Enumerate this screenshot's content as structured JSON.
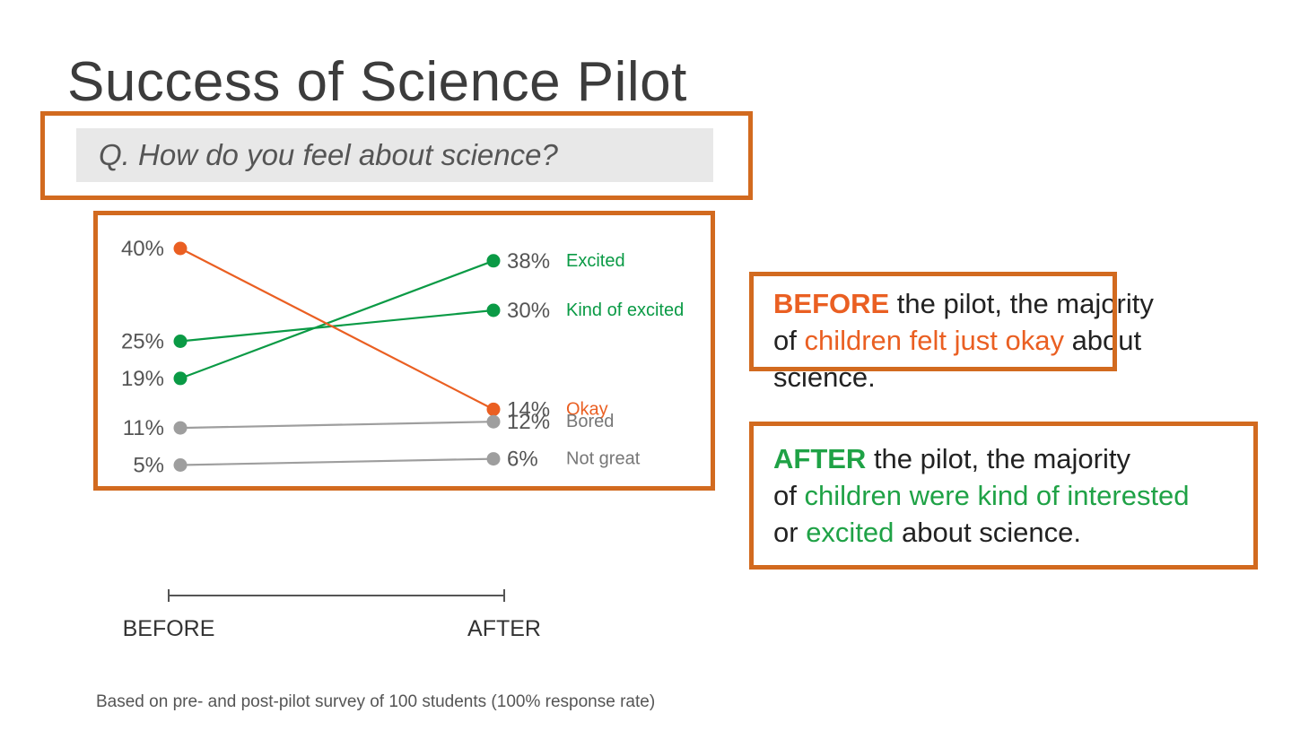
{
  "slide": {
    "title": "Success of Science Pilot",
    "question": "Q.  How do you feel about science?",
    "footnote": "Based on pre- and post-pilot survey of 100 students (100% response rate)"
  },
  "callouts": {
    "before": {
      "keyword": "BEFORE",
      "line1_rest": " the pilot, the majority",
      "line2_prefix": "of ",
      "line2_highlight": "children felt just okay",
      "line2_suffix": " about",
      "line3": "science."
    },
    "after": {
      "keyword": "AFTER",
      "line1_rest": " the pilot, the majority",
      "line2_prefix": "of ",
      "line2_highlight": "children were kind of interested",
      "line3_prefix": "or ",
      "line3_highlight": "excited",
      "line3_suffix": " about science."
    }
  },
  "colors": {
    "accent_box": "#d26a1f",
    "orange": "#ea5f22",
    "green": "#1fa246",
    "green_dark": "#0a9a45",
    "gray": "#9e9e9e",
    "text": "#222222"
  },
  "chart_data": {
    "type": "line",
    "x": [
      "BEFORE",
      "AFTER"
    ],
    "series": [
      {
        "name": "Excited",
        "values": [
          19,
          38
        ],
        "color": "#0a9a45",
        "label_color": "#0a9a45"
      },
      {
        "name": "Kind of excited",
        "values": [
          25,
          30
        ],
        "color": "#0a9a45",
        "label_color": "#0a9a45"
      },
      {
        "name": "Okay",
        "values": [
          40,
          14
        ],
        "color": "#ea5f22",
        "label_color": "#ea5f22"
      },
      {
        "name": "Bored",
        "values": [
          11,
          12
        ],
        "color": "#9e9e9e",
        "label_color": "#777777"
      },
      {
        "name": "Not great",
        "values": [
          5,
          6
        ],
        "color": "#9e9e9e",
        "label_color": "#777777"
      }
    ],
    "value_suffix": "%",
    "title": "",
    "xlabel": "",
    "ylabel": "",
    "grid": false,
    "legend": "inline-right"
  }
}
